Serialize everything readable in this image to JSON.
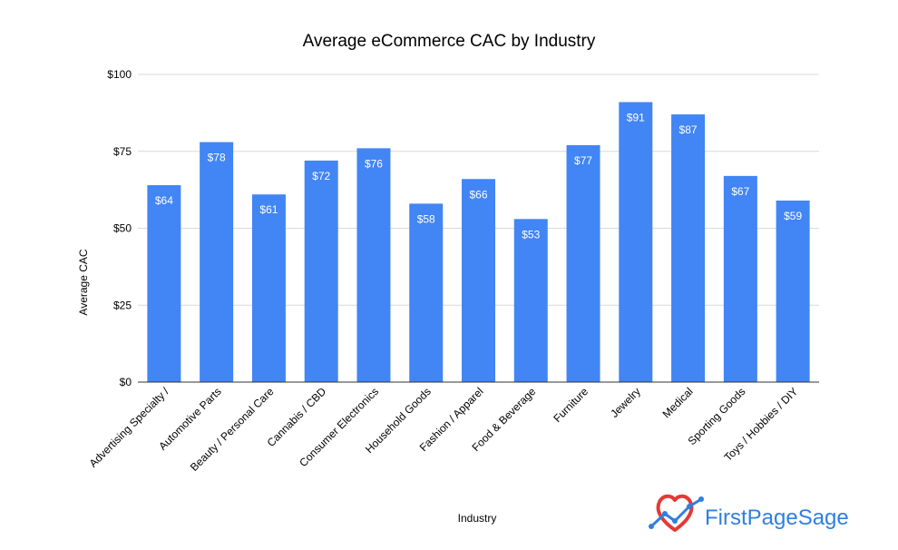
{
  "chart_data": {
    "type": "bar",
    "title": "Average eCommerce CAC by Industry",
    "xlabel": "Industry",
    "ylabel": "Average CAC",
    "ylim": [
      0,
      100
    ],
    "yticks": [
      0,
      25,
      50,
      75,
      100
    ],
    "ytick_labels": [
      "$0",
      "$25",
      "$50",
      "$75",
      "$100"
    ],
    "grid": true,
    "legend": "none",
    "categories": [
      "Advertising Specialty /",
      "Automotive Parts",
      "Beauty / Personal Care",
      "Cannabis / CBD",
      "Consumer Electronics",
      "Household Goods",
      "Fashion / Apparel",
      "Food & Beverage",
      "Furniture",
      "Jewelry",
      "Medical",
      "Sporting Goods",
      "Toys / Hobbies / DIY"
    ],
    "values": [
      64,
      78,
      61,
      72,
      76,
      58,
      66,
      53,
      77,
      91,
      87,
      67,
      59
    ],
    "data_labels": [
      "$64",
      "$78",
      "$61",
      "$72",
      "$76",
      "$58",
      "$66",
      "$53",
      "$77",
      "$91",
      "$87",
      "$67",
      "$59"
    ],
    "colors": {
      "bar": "#4285f4",
      "grid": "#d9d9d9",
      "axis": "#333333"
    }
  },
  "brand": {
    "name": "FirstPageSage",
    "logo_icon": "heart-chart-logo-icon",
    "colors": {
      "heart": "#e53935",
      "line": "#2f7fe0",
      "text": "#2f7fe0"
    }
  }
}
